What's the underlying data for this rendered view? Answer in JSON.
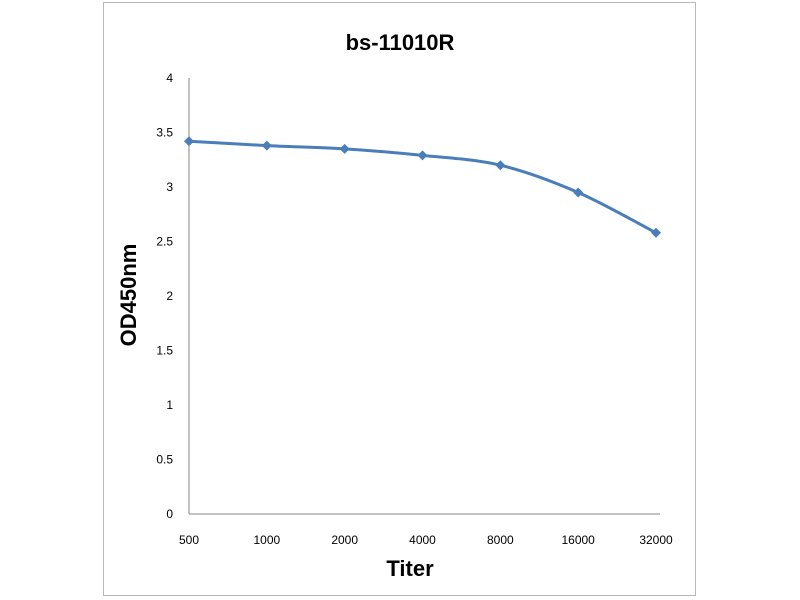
{
  "chart_data": {
    "type": "line",
    "title": "bs-11010R",
    "xlabel": "Titer",
    "ylabel": "OD450nm",
    "categories": [
      "500",
      "1000",
      "2000",
      "4000",
      "8000",
      "16000",
      "32000"
    ],
    "series": [
      {
        "values": [
          3.42,
          3.38,
          3.35,
          3.29,
          3.2,
          2.95,
          2.58
        ]
      }
    ],
    "ylim": [
      0,
      4
    ],
    "yticks": [
      "0",
      "0.5",
      "1",
      "1.5",
      "2",
      "2.5",
      "3",
      "3.5",
      "4"
    ],
    "grid": false,
    "legend": "none",
    "line_color": "#4a7ebb",
    "marker": "diamond"
  }
}
